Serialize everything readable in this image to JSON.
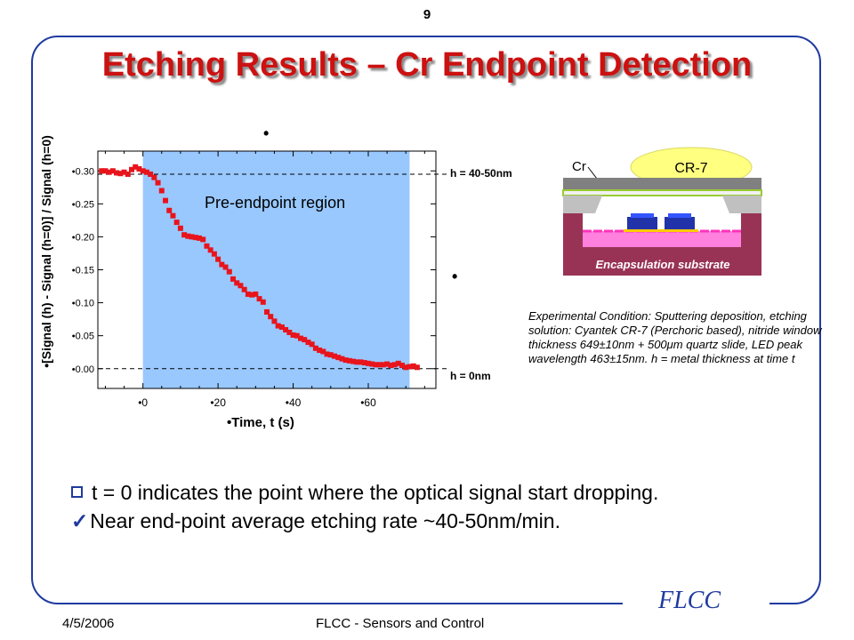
{
  "page_number": "9",
  "title": "Etching Results – Cr Endpoint Detection",
  "chart": {
    "y_label": "•[Signal (h) - Signal (h=0)] / Signal (h=0)",
    "x_label": "•Time, t (s)",
    "region_label": "Pre-endpoint region",
    "h_top_label": "h = 40-50nm",
    "h_bottom_label": "h = 0nm",
    "stray_mark": "•"
  },
  "chart_data": {
    "type": "scatter",
    "xlim": [
      -12,
      78
    ],
    "ylim": [
      -0.03,
      0.33
    ],
    "x_ticks": [
      "•0",
      "•20",
      "•40",
      "•60"
    ],
    "x_tick_values": [
      0,
      20,
      40,
      60
    ],
    "y_ticks": [
      "•0.00",
      "•0.05",
      "•0.10",
      "•0.15",
      "•0.20",
      "•0.25",
      "•0.30"
    ],
    "y_tick_values": [
      0,
      0.05,
      0.1,
      0.15,
      0.2,
      0.25,
      0.3
    ],
    "shaded_region": [
      0,
      71
    ],
    "reference_lines": [
      0.295,
      0.0
    ],
    "series": [
      {
        "color": "#e8141c",
        "x": [
          -11,
          -10,
          -9,
          -8,
          -7,
          -6,
          -5,
          -4,
          -3,
          -2,
          -1,
          0,
          1,
          2,
          3,
          4,
          5,
          6,
          7,
          8,
          9,
          10,
          11,
          12,
          13,
          14,
          15,
          16,
          17,
          18,
          19,
          20,
          21,
          22,
          23,
          24,
          25,
          26,
          27,
          28,
          29,
          30,
          31,
          32,
          33,
          34,
          35,
          36,
          37,
          38,
          39,
          40,
          41,
          42,
          43,
          44,
          45,
          46,
          47,
          48,
          49,
          50,
          51,
          52,
          53,
          54,
          55,
          56,
          57,
          58,
          59,
          60,
          61,
          62,
          63,
          64,
          65,
          66,
          67,
          68,
          69,
          70,
          71,
          72,
          73
        ],
        "y": [
          0.3,
          0.3,
          0.298,
          0.3,
          0.297,
          0.296,
          0.298,
          0.295,
          0.302,
          0.306,
          0.303,
          0.3,
          0.298,
          0.295,
          0.29,
          0.282,
          0.27,
          0.255,
          0.24,
          0.232,
          0.222,
          0.213,
          0.203,
          0.201,
          0.2,
          0.199,
          0.198,
          0.196,
          0.186,
          0.18,
          0.174,
          0.166,
          0.158,
          0.154,
          0.147,
          0.136,
          0.13,
          0.126,
          0.12,
          0.113,
          0.112,
          0.113,
          0.106,
          0.101,
          0.086,
          0.079,
          0.072,
          0.065,
          0.063,
          0.059,
          0.055,
          0.051,
          0.05,
          0.046,
          0.044,
          0.04,
          0.037,
          0.031,
          0.028,
          0.026,
          0.022,
          0.021,
          0.019,
          0.017,
          0.015,
          0.013,
          0.012,
          0.011,
          0.01,
          0.01,
          0.009,
          0.008,
          0.007,
          0.006,
          0.006,
          0.006,
          0.007,
          0.005,
          0.006,
          0.008,
          0.005,
          0.002,
          0.003,
          0.004,
          0.002
        ]
      }
    ]
  },
  "diagram": {
    "cr_label": "Cr",
    "cr7_label": "CR-7",
    "substrate_label": "Encapsulation substrate",
    "colors": {
      "cr7": "#ffff80",
      "cr_layer": "#808080",
      "substrate": "#993355",
      "window": "#99cc33",
      "pink": "#ff66cc"
    }
  },
  "condition_text": "Experimental Condition: Sputtering deposition, etching solution: Cyantek CR-7 (Perchoric based), nitride window thickness 649±10nm + 500μm quartz slide, LED peak wavelength 463±15nm. h = metal thickness at time t",
  "bullets": [
    {
      "icon": "checkbox-icon",
      "text": "t = 0 indicates the point where the optical signal start dropping."
    },
    {
      "icon": "checkmark-icon",
      "text": "Near end-point average etching rate ~40-50nm/min."
    }
  ],
  "footer": {
    "date": "4/5/2006",
    "center": "FLCC - Sensors and Control",
    "logo": "FLCC"
  },
  "colors": {
    "title": "#cc1111",
    "frame": "#1f3aa0",
    "region_fill": "#99c8ff",
    "marker": "#e8141c"
  }
}
